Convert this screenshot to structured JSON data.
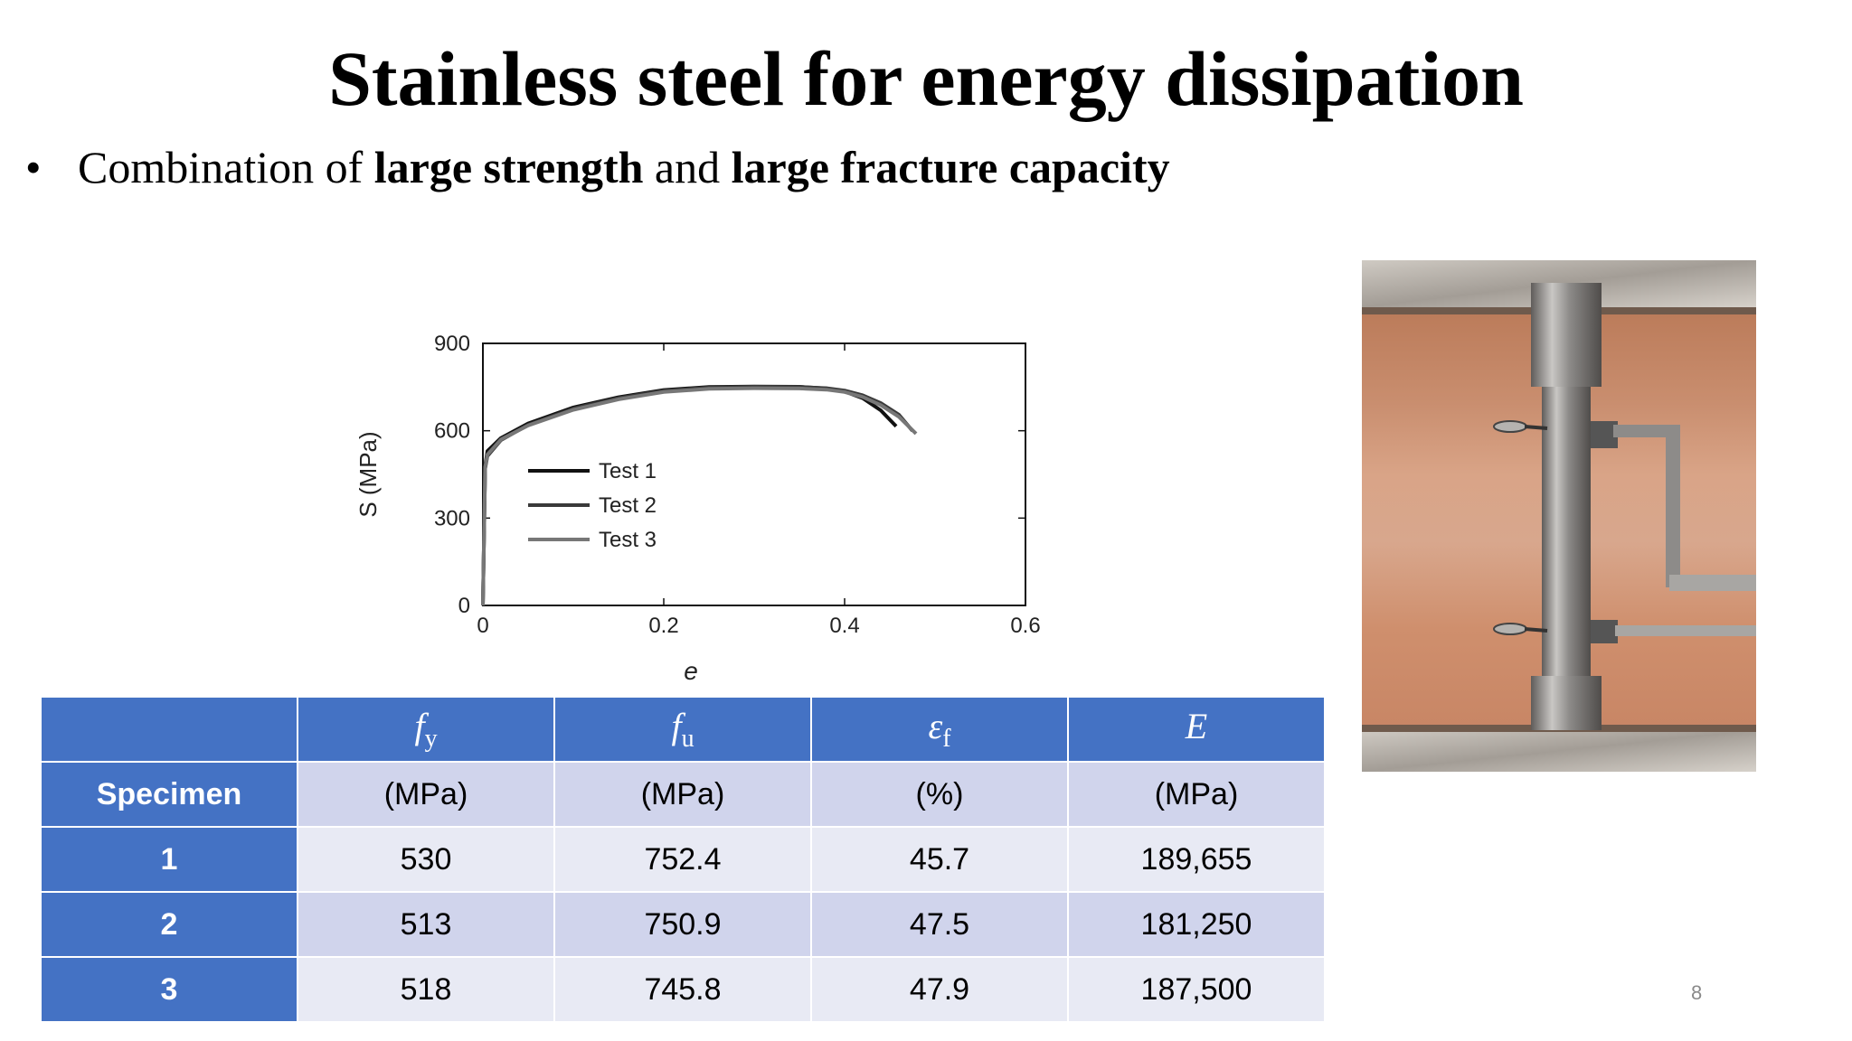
{
  "slide": {
    "title": "Stainless steel for energy dissipation",
    "bullet": {
      "symbol": "•",
      "text_1": "Combination of ",
      "bold_1": "large strength",
      "text_2": " and ",
      "bold_2": "large fracture capacity"
    },
    "page_number": "8"
  },
  "chart_data": {
    "type": "line",
    "xlabel": "e",
    "ylabel": "S (MPa)",
    "xlim": [
      0,
      0.6
    ],
    "ylim": [
      0,
      900
    ],
    "x_ticks": [
      "0",
      "0.2",
      "0.4",
      "0.6"
    ],
    "y_ticks": [
      "0",
      "300",
      "600",
      "900"
    ],
    "grid": false,
    "legend_position": "center-left",
    "series": [
      {
        "name": "Test 1",
        "color": "#111111",
        "x": [
          0,
          0.0025,
          0.005,
          0.02,
          0.05,
          0.1,
          0.15,
          0.2,
          0.25,
          0.3,
          0.35,
          0.38,
          0.4,
          0.42,
          0.44,
          0.457
        ],
        "y": [
          0,
          480,
          530,
          575,
          625,
          680,
          715,
          740,
          750,
          752,
          751,
          745,
          735,
          712,
          670,
          615
        ]
      },
      {
        "name": "Test 2",
        "color": "#3a3a3a",
        "x": [
          0,
          0.0025,
          0.005,
          0.02,
          0.05,
          0.1,
          0.15,
          0.2,
          0.25,
          0.3,
          0.35,
          0.38,
          0.4,
          0.42,
          0.44,
          0.46,
          0.475
        ],
        "y": [
          0,
          470,
          513,
          568,
          620,
          676,
          712,
          737,
          748,
          751,
          750,
          746,
          738,
          722,
          695,
          655,
          600
        ]
      },
      {
        "name": "Test 3",
        "color": "#777777",
        "x": [
          0,
          0.0025,
          0.005,
          0.02,
          0.05,
          0.1,
          0.15,
          0.2,
          0.25,
          0.3,
          0.35,
          0.38,
          0.4,
          0.42,
          0.44,
          0.46,
          0.479
        ],
        "y": [
          0,
          475,
          518,
          570,
          618,
          672,
          708,
          733,
          744,
          746,
          745,
          741,
          733,
          716,
          688,
          648,
          590
        ]
      }
    ]
  },
  "table": {
    "header_symbols": [
      {
        "base": "f",
        "sub": "y"
      },
      {
        "base": "f",
        "sub": "u"
      },
      {
        "base": "ε",
        "sub": "f"
      },
      {
        "base": "E",
        "sub": ""
      }
    ],
    "row_header_label": "Specimen",
    "units": [
      "(MPa)",
      "(MPa)",
      "(%)",
      "(MPa)"
    ],
    "rows": [
      {
        "label": "1",
        "values": [
          "530",
          "752.4",
          "45.7",
          "189,655"
        ]
      },
      {
        "label": "2",
        "values": [
          "513",
          "750.9",
          "47.5",
          "181,250"
        ]
      },
      {
        "label": "3",
        "values": [
          "518",
          "745.8",
          "47.9",
          "187,500"
        ]
      }
    ]
  },
  "photo": {
    "colors": {
      "frame": "#6f5a4c",
      "rod": "#9a9896",
      "background": "#c98e6f"
    }
  }
}
